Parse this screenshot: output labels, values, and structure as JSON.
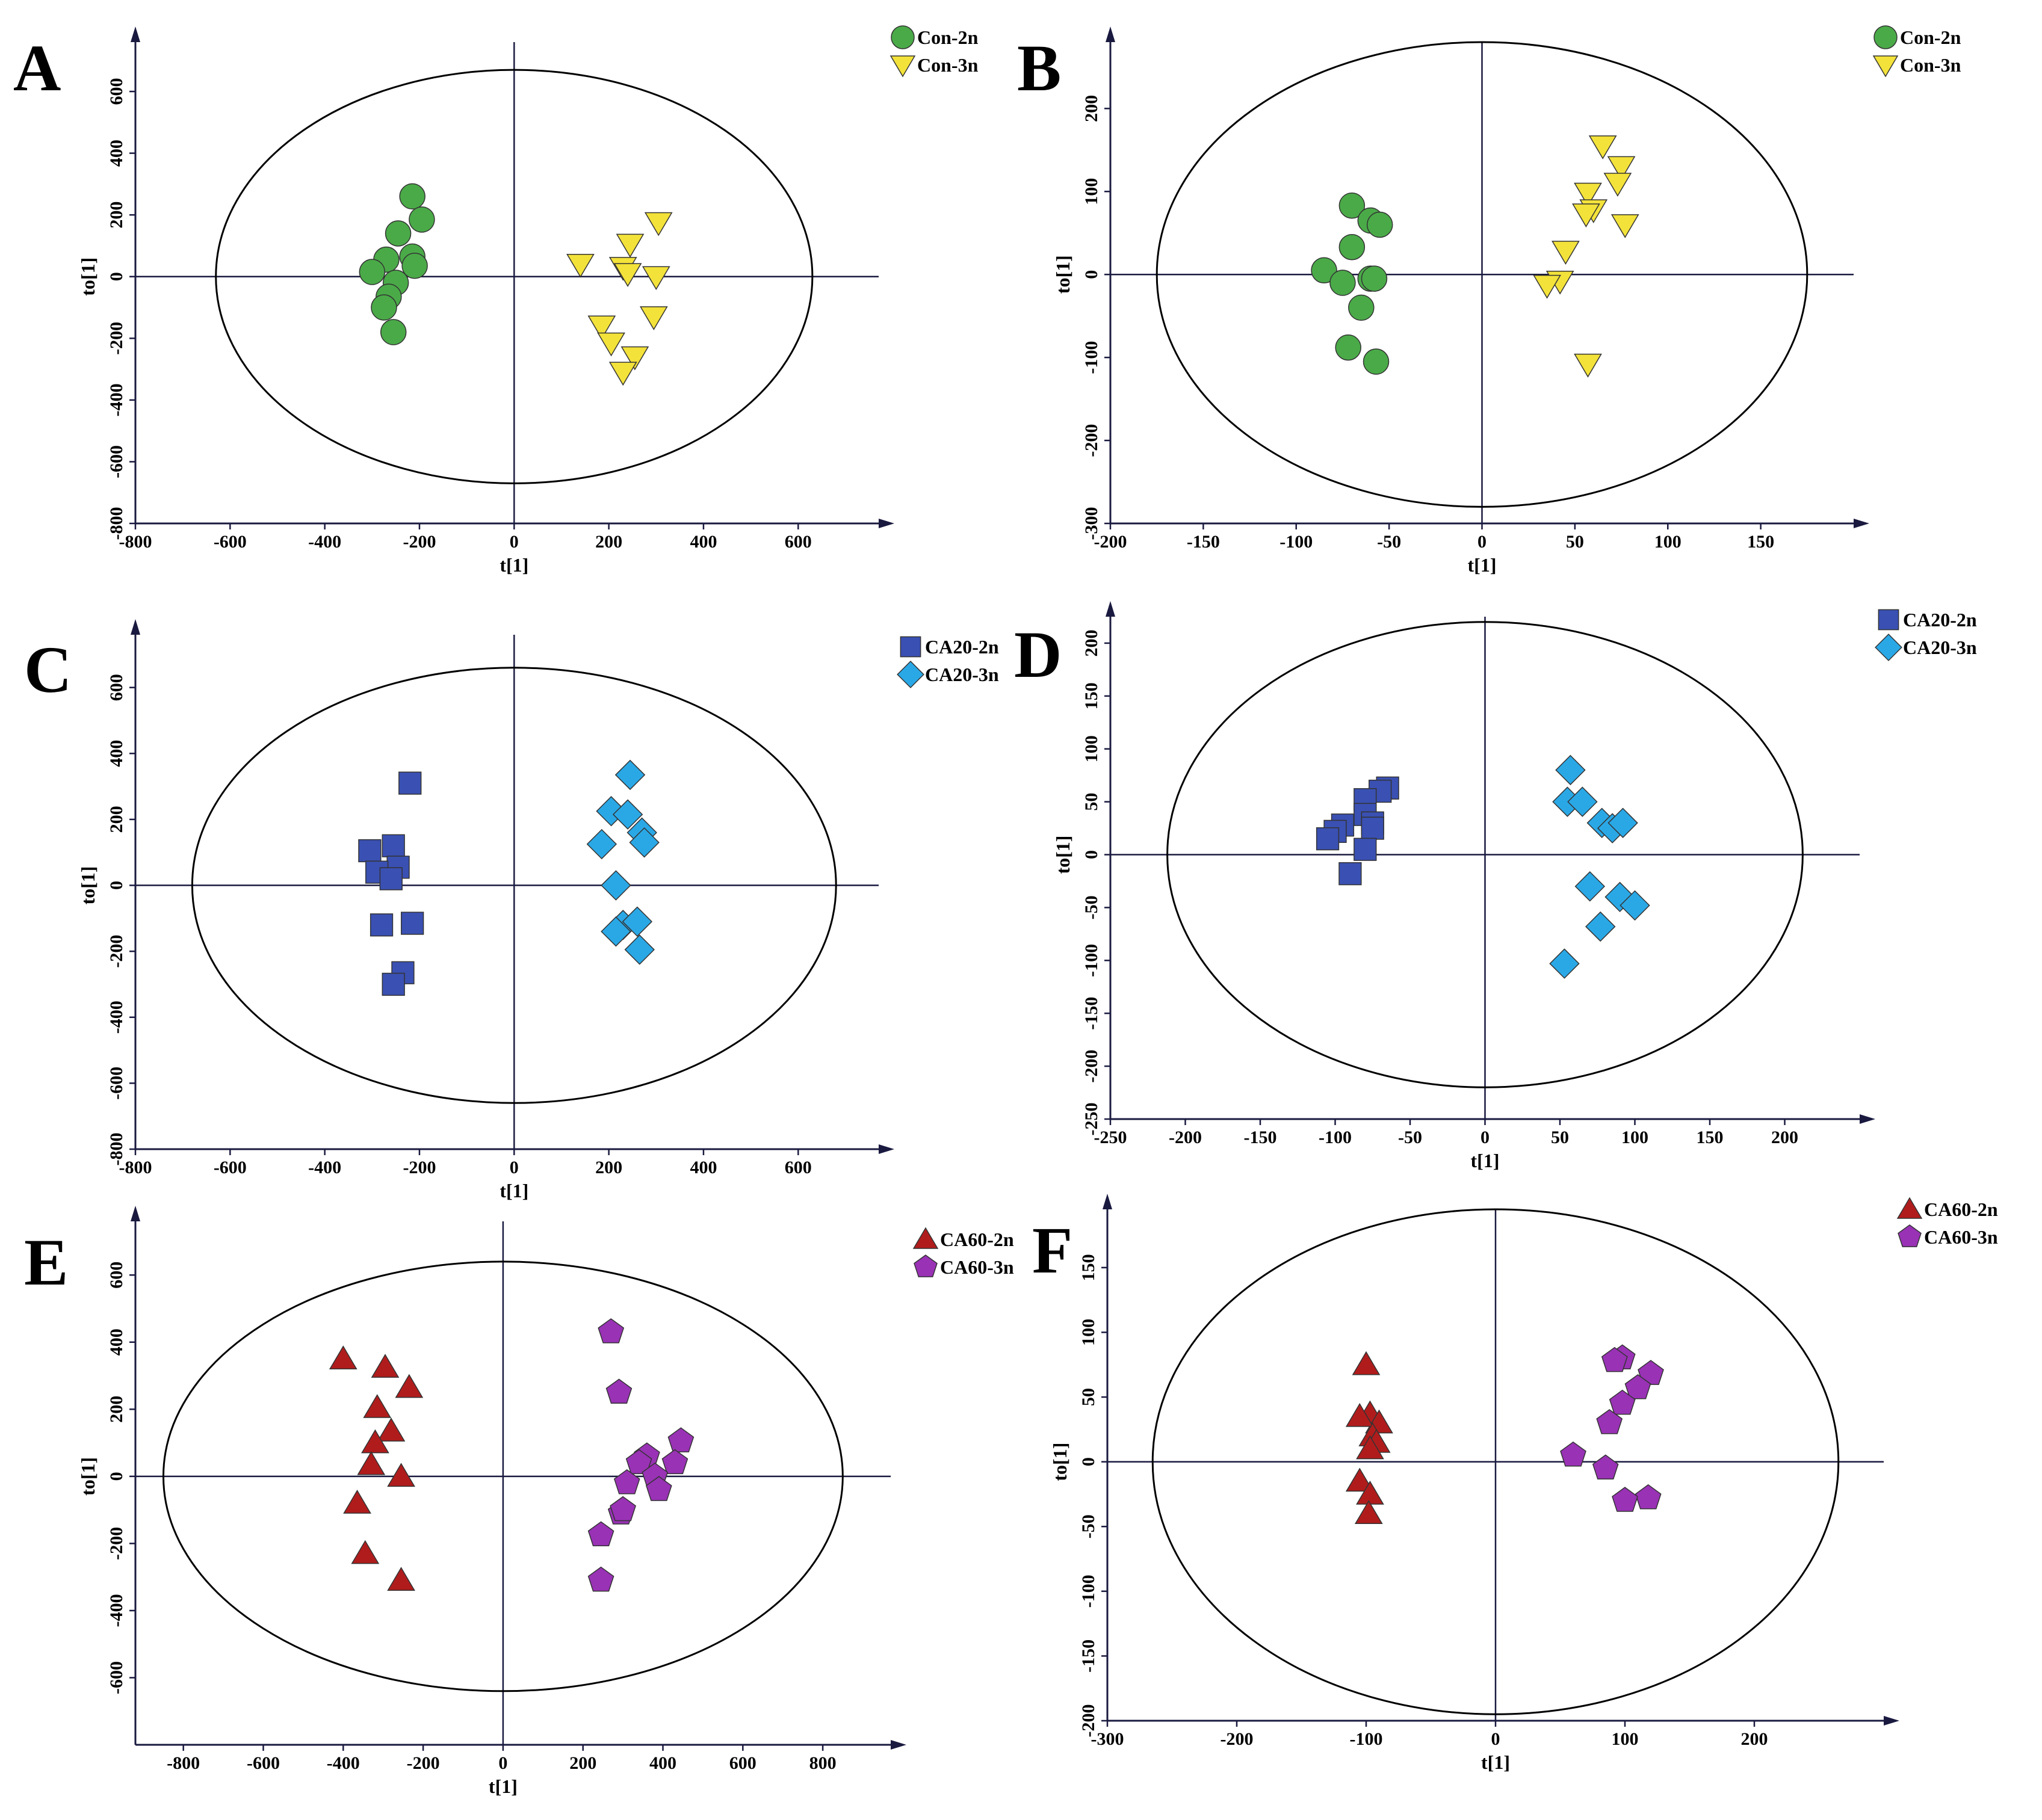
{
  "chart_data": [
    {
      "panel": "A",
      "type": "scatter",
      "xlabel": "t[1]",
      "ylabel": "to[1]",
      "xlim": [
        -800,
        770
      ],
      "ylim": [
        -800,
        760
      ],
      "xticks": [
        -800,
        -600,
        -400,
        -200,
        0,
        200,
        400,
        600
      ],
      "yticks": [
        -800,
        -600,
        -400,
        -200,
        0,
        200,
        400,
        600
      ],
      "ellipse": {
        "rx": 630,
        "ry": 670
      },
      "series": [
        {
          "name": "Con-2n",
          "marker": "circle",
          "color": "#4aaa48",
          "points": [
            [
              -215,
              260
            ],
            [
              -195,
              185
            ],
            [
              -245,
              140
            ],
            [
              -215,
              65
            ],
            [
              -210,
              35
            ],
            [
              -270,
              55
            ],
            [
              -300,
              15
            ],
            [
              -250,
              -20
            ],
            [
              -265,
              -65
            ],
            [
              -275,
              -100
            ],
            [
              -255,
              -180
            ]
          ]
        },
        {
          "name": "Con-3n",
          "marker": "triangle-down",
          "color": "#f3e23a",
          "points": [
            [
              305,
              175
            ],
            [
              245,
              105
            ],
            [
              140,
              40
            ],
            [
              230,
              30
            ],
            [
              240,
              10
            ],
            [
              300,
              0
            ],
            [
              295,
              -130
            ],
            [
              185,
              -160
            ],
            [
              205,
              -215
            ],
            [
              255,
              -260
            ],
            [
              230,
              -310
            ]
          ]
        }
      ]
    },
    {
      "panel": "B",
      "type": "scatter",
      "xlabel": "t[1]",
      "ylabel": "to[1]",
      "xlim": [
        -200,
        200
      ],
      "ylim": [
        -300,
        280
      ],
      "xticks": [
        -200,
        -150,
        -100,
        -50,
        0,
        50,
        100,
        150
      ],
      "yticks": [
        -300,
        -200,
        -100,
        0,
        100,
        200
      ],
      "ellipse": {
        "rx": 175,
        "ry": 280
      },
      "series": [
        {
          "name": "Con-2n",
          "marker": "circle",
          "color": "#4aaa48",
          "points": [
            [
              -70,
              83
            ],
            [
              -60,
              65
            ],
            [
              -55,
              60
            ],
            [
              -70,
              33
            ],
            [
              -85,
              5
            ],
            [
              -75,
              -10
            ],
            [
              -60,
              -5
            ],
            [
              -58,
              -5
            ],
            [
              -65,
              -40
            ],
            [
              -72,
              -88
            ],
            [
              -57,
              -105
            ]
          ]
        },
        {
          "name": "Con-3n",
          "marker": "triangle-down",
          "color": "#f3e23a",
          "points": [
            [
              65,
              155
            ],
            [
              75,
              130
            ],
            [
              73,
              110
            ],
            [
              57,
              98
            ],
            [
              60,
              78
            ],
            [
              56,
              73
            ],
            [
              77,
              60
            ],
            [
              45,
              28
            ],
            [
              42,
              -8
            ],
            [
              35,
              -13
            ],
            [
              57,
              -108
            ]
          ]
        }
      ]
    },
    {
      "panel": "C",
      "type": "scatter",
      "xlabel": "t[1]",
      "ylabel": "to[1]",
      "xlim": [
        -800,
        770
      ],
      "ylim": [
        -800,
        760
      ],
      "xticks": [
        -800,
        -600,
        -400,
        -200,
        0,
        200,
        400,
        600
      ],
      "yticks": [
        -800,
        -600,
        -400,
        -200,
        0,
        200,
        400,
        600
      ],
      "ellipse": {
        "rx": 680,
        "ry": 660
      },
      "series": [
        {
          "name": "CA20-2n",
          "marker": "square",
          "color": "#3a50b2",
          "points": [
            [
              -220,
              310
            ],
            [
              -255,
              120
            ],
            [
              -305,
              105
            ],
            [
              -245,
              55
            ],
            [
              -290,
              40
            ],
            [
              -260,
              20
            ],
            [
              -280,
              -120
            ],
            [
              -215,
              -115
            ],
            [
              -235,
              -265
            ],
            [
              -255,
              -300
            ]
          ]
        },
        {
          "name": "CA20-3n",
          "marker": "diamond",
          "color": "#2aa8e6",
          "points": [
            [
              245,
              335
            ],
            [
              205,
              225
            ],
            [
              240,
              215
            ],
            [
              270,
              160
            ],
            [
              275,
              130
            ],
            [
              185,
              125
            ],
            [
              215,
              0
            ],
            [
              230,
              -120
            ],
            [
              260,
              -110
            ],
            [
              215,
              -140
            ],
            [
              265,
              -195
            ]
          ]
        }
      ]
    },
    {
      "panel": "D",
      "type": "scatter",
      "xlabel": "t[1]",
      "ylabel": "to[1]",
      "xlim": [
        -250,
        250
      ],
      "ylim": [
        -250,
        225
      ],
      "xticks": [
        -250,
        -200,
        -150,
        -100,
        -50,
        0,
        50,
        100,
        150,
        200
      ],
      "yticks": [
        -250,
        -200,
        -150,
        -100,
        -50,
        0,
        50,
        100,
        150,
        200
      ],
      "ellipse": {
        "rx": 212,
        "ry": 220
      },
      "series": [
        {
          "name": "CA20-2n",
          "marker": "square",
          "color": "#3a50b2",
          "points": [
            [
              -65,
              63
            ],
            [
              -70,
              60
            ],
            [
              -80,
              52
            ],
            [
              -95,
              28
            ],
            [
              -100,
              22
            ],
            [
              -105,
              15
            ],
            [
              -80,
              38
            ],
            [
              -75,
              30
            ],
            [
              -75,
              25
            ],
            [
              -80,
              5
            ],
            [
              -90,
              -18
            ]
          ]
        },
        {
          "name": "CA20-3n",
          "marker": "diamond",
          "color": "#2aa8e6",
          "points": [
            [
              57,
              80
            ],
            [
              55,
              50
            ],
            [
              65,
              50
            ],
            [
              78,
              30
            ],
            [
              85,
              25
            ],
            [
              92,
              30
            ],
            [
              70,
              -30
            ],
            [
              90,
              -40
            ],
            [
              100,
              -48
            ],
            [
              77,
              -68
            ],
            [
              53,
              -103
            ]
          ]
        }
      ]
    },
    {
      "panel": "E",
      "type": "scatter",
      "xlabel": "t[1]",
      "ylabel": "to[1]",
      "xlim": [
        -920,
        970
      ],
      "ylim": [
        -800,
        760
      ],
      "xticks": [
        -800,
        -600,
        -400,
        -200,
        0,
        200,
        400,
        600,
        800
      ],
      "yticks": [
        -600,
        -400,
        -200,
        0,
        200,
        400,
        600
      ],
      "ellipse": {
        "rx": 850,
        "ry": 640
      },
      "series": [
        {
          "name": "CA60-2n",
          "marker": "triangle-up",
          "color": "#b01c1c",
          "points": [
            [
              -400,
              350
            ],
            [
              -295,
              325
            ],
            [
              -235,
              265
            ],
            [
              -315,
              205
            ],
            [
              -280,
              135
            ],
            [
              -320,
              100
            ],
            [
              -330,
              35
            ],
            [
              -255,
              0
            ],
            [
              -365,
              -80
            ],
            [
              -345,
              -230
            ],
            [
              -255,
              -310
            ]
          ]
        },
        {
          "name": "CA60-3n",
          "marker": "pentagon",
          "color": "#9932b5",
          "points": [
            [
              270,
              430
            ],
            [
              290,
              250
            ],
            [
              445,
              105
            ],
            [
              360,
              60
            ],
            [
              430,
              40
            ],
            [
              340,
              40
            ],
            [
              310,
              -20
            ],
            [
              380,
              0
            ],
            [
              390,
              -40
            ],
            [
              295,
              -110
            ],
            [
              300,
              -100
            ],
            [
              245,
              -175
            ],
            [
              245,
              -310
            ]
          ]
        }
      ]
    },
    {
      "panel": "F",
      "type": "scatter",
      "xlabel": "t[1]",
      "ylabel": "to[1]",
      "xlim": [
        -300,
        300
      ],
      "ylim": [
        -200,
        195
      ],
      "xticks": [
        -300,
        -200,
        -100,
        0,
        100,
        200
      ],
      "yticks": [
        -200,
        -150,
        -100,
        -50,
        0,
        50,
        100,
        150
      ],
      "ellipse": {
        "rx": 265,
        "ry": 195
      },
      "series": [
        {
          "name": "CA60-2n",
          "marker": "triangle-up",
          "color": "#b01c1c",
          "points": [
            [
              -100,
              75
            ],
            [
              -97,
              37
            ],
            [
              -90,
              30
            ],
            [
              -105,
              35
            ],
            [
              -95,
              20
            ],
            [
              -92,
              15
            ],
            [
              -97,
              10
            ],
            [
              -105,
              -15
            ],
            [
              -97,
              -25
            ],
            [
              -98,
              -40
            ]
          ]
        },
        {
          "name": "CA60-3n",
          "marker": "pentagon",
          "color": "#9932b5",
          "points": [
            [
              98,
              80
            ],
            [
              92,
              78
            ],
            [
              120,
              68
            ],
            [
              110,
              57
            ],
            [
              98,
              45
            ],
            [
              88,
              30
            ],
            [
              60,
              5
            ],
            [
              85,
              -5
            ],
            [
              118,
              -28
            ],
            [
              100,
              -30
            ]
          ]
        }
      ]
    }
  ]
}
